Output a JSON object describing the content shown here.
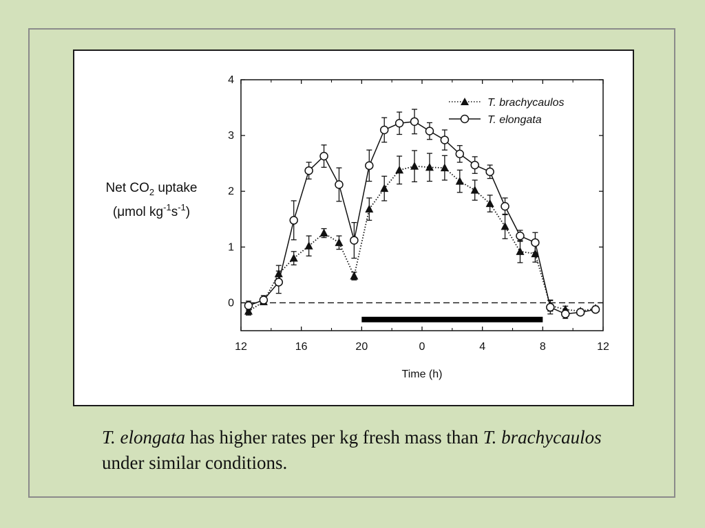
{
  "caption": {
    "part1": "T. elongata",
    "part2": " has higher rates per kg fresh mass than ",
    "part3": "T. brachycaulos",
    "part4": " under similar conditions."
  },
  "chart_data": {
    "type": "line",
    "xlabel": "Time (h)",
    "ylabel_line1": "Net CO",
    "ylabel_sub": "2",
    "ylabel_line1b": " uptake",
    "ylabel_line2": "(μmol kg",
    "ylabel_sup1": "-1",
    "ylabel_s": "s",
    "ylabel_sup2": "-1",
    "ylabel_end": ")",
    "xlim": [
      12,
      36
    ],
    "ylim": [
      -0.5,
      4
    ],
    "x_ticks": [
      {
        "value": 12,
        "label": "12"
      },
      {
        "value": 16,
        "label": "16"
      },
      {
        "value": 20,
        "label": "20"
      },
      {
        "value": 24,
        "label": "0"
      },
      {
        "value": 28,
        "label": "4"
      },
      {
        "value": 32,
        "label": "8"
      },
      {
        "value": 36,
        "label": "12"
      }
    ],
    "y_ticks": [
      {
        "value": 0,
        "label": "0"
      },
      {
        "value": 1,
        "label": "1"
      },
      {
        "value": 2,
        "label": "2"
      },
      {
        "value": 3,
        "label": "3"
      },
      {
        "value": 4,
        "label": "4"
      }
    ],
    "zero_line": true,
    "dark_period": [
      20,
      32
    ],
    "legend_position": "top-right",
    "series": [
      {
        "name": "T. brachycaulos",
        "marker": "filled-triangle",
        "line": "dotted",
        "points": [
          {
            "x": 12.5,
            "y": -0.15,
            "err": 0.07
          },
          {
            "x": 13.5,
            "y": 0.02,
            "err": 0.05
          },
          {
            "x": 14.5,
            "y": 0.52,
            "err": 0.15
          },
          {
            "x": 15.5,
            "y": 0.8,
            "err": 0.12
          },
          {
            "x": 16.5,
            "y": 1.02,
            "err": 0.18
          },
          {
            "x": 17.5,
            "y": 1.25,
            "err": 0.08
          },
          {
            "x": 18.5,
            "y": 1.08,
            "err": 0.12
          },
          {
            "x": 19.5,
            "y": 0.48,
            "err": 0.07
          },
          {
            "x": 20.5,
            "y": 1.68,
            "err": 0.2
          },
          {
            "x": 21.5,
            "y": 2.05,
            "err": 0.22
          },
          {
            "x": 22.5,
            "y": 2.38,
            "err": 0.25
          },
          {
            "x": 23.5,
            "y": 2.45,
            "err": 0.28
          },
          {
            "x": 24.5,
            "y": 2.43,
            "err": 0.25
          },
          {
            "x": 25.5,
            "y": 2.42,
            "err": 0.22
          },
          {
            "x": 26.5,
            "y": 2.18,
            "err": 0.2
          },
          {
            "x": 27.5,
            "y": 2.02,
            "err": 0.18
          },
          {
            "x": 28.5,
            "y": 1.78,
            "err": 0.15
          },
          {
            "x": 29.5,
            "y": 1.37,
            "err": 0.22
          },
          {
            "x": 30.5,
            "y": 0.92,
            "err": 0.2
          },
          {
            "x": 31.5,
            "y": 0.88,
            "err": 0.15
          },
          {
            "x": 32.5,
            "y": -0.05,
            "err": 0.1
          },
          {
            "x": 33.5,
            "y": -0.12,
            "err": 0.06
          },
          {
            "x": 34.5,
            "y": -0.15,
            "err": 0.04
          },
          {
            "x": 35.5,
            "y": -0.1,
            "err": 0.04
          }
        ]
      },
      {
        "name": "T. elongata",
        "marker": "open-circle",
        "line": "solid",
        "points": [
          {
            "x": 12.5,
            "y": -0.05,
            "err": 0.08
          },
          {
            "x": 13.5,
            "y": 0.05,
            "err": 0.08
          },
          {
            "x": 14.5,
            "y": 0.37,
            "err": 0.2
          },
          {
            "x": 15.5,
            "y": 1.48,
            "err": 0.35
          },
          {
            "x": 16.5,
            "y": 2.37,
            "err": 0.15
          },
          {
            "x": 17.5,
            "y": 2.63,
            "err": 0.2
          },
          {
            "x": 18.5,
            "y": 2.12,
            "err": 0.3
          },
          {
            "x": 19.5,
            "y": 1.12,
            "err": 0.32
          },
          {
            "x": 20.5,
            "y": 2.46,
            "err": 0.28
          },
          {
            "x": 21.5,
            "y": 3.1,
            "err": 0.22
          },
          {
            "x": 22.5,
            "y": 3.22,
            "err": 0.2
          },
          {
            "x": 23.5,
            "y": 3.25,
            "err": 0.22
          },
          {
            "x": 24.5,
            "y": 3.08,
            "err": 0.15
          },
          {
            "x": 25.5,
            "y": 2.92,
            "err": 0.18
          },
          {
            "x": 26.5,
            "y": 2.67,
            "err": 0.15
          },
          {
            "x": 27.5,
            "y": 2.47,
            "err": 0.15
          },
          {
            "x": 28.5,
            "y": 2.35,
            "err": 0.12
          },
          {
            "x": 29.5,
            "y": 1.73,
            "err": 0.15
          },
          {
            "x": 30.5,
            "y": 1.2,
            "err": 0.1
          },
          {
            "x": 31.5,
            "y": 1.08,
            "err": 0.18
          },
          {
            "x": 32.5,
            "y": -0.08,
            "err": 0.12
          },
          {
            "x": 33.5,
            "y": -0.2,
            "err": 0.08
          },
          {
            "x": 34.5,
            "y": -0.17,
            "err": 0.04
          },
          {
            "x": 35.5,
            "y": -0.12,
            "err": 0.04
          }
        ]
      }
    ]
  }
}
